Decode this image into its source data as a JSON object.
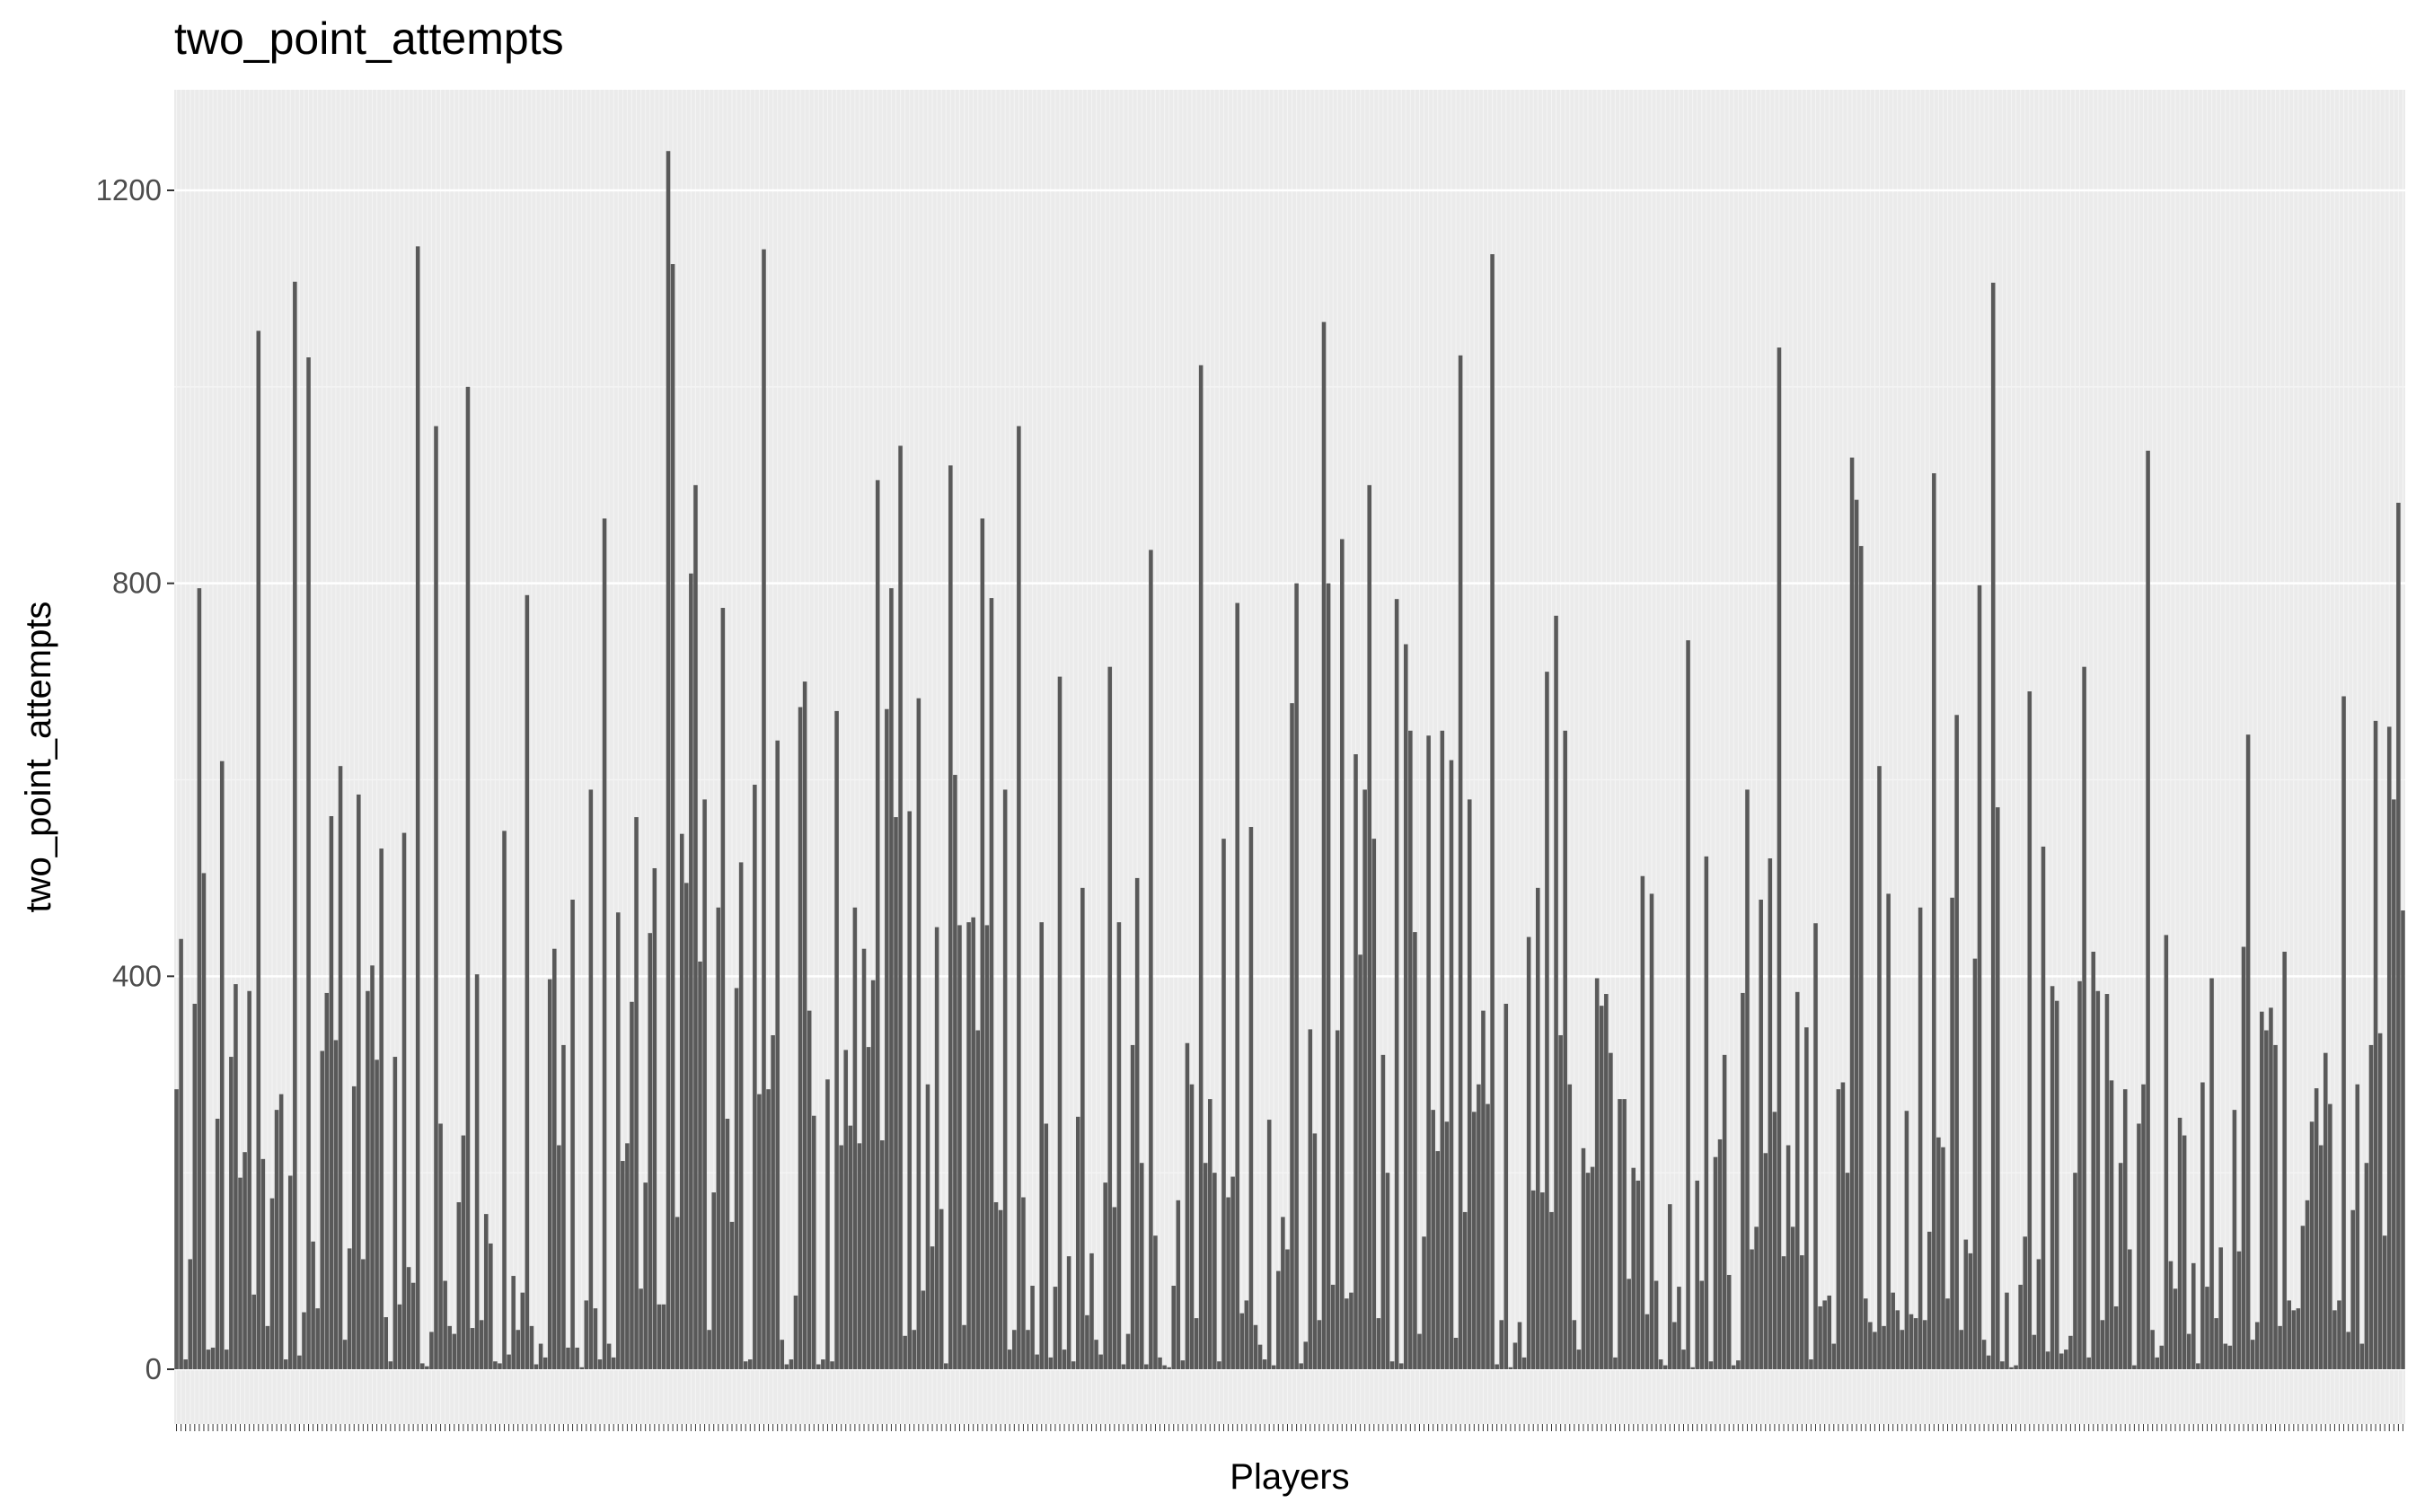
{
  "chart_data": {
    "type": "bar",
    "title": "two_point_attempts",
    "xlabel": "Players",
    "ylabel": "two_point_attempts",
    "ylim": [
      0,
      1300
    ],
    "yticks": [
      0,
      400,
      800,
      1200
    ],
    "grid": true,
    "legend": "none",
    "colors": {
      "bar": "#595959",
      "panel": "#ebebeb",
      "grid_major": "#ffffff",
      "grid_minor": "#f4f4f4",
      "tick": "#333333"
    },
    "values": [
      285,
      438,
      10,
      112,
      372,
      795,
      505,
      20,
      22,
      255,
      619,
      20,
      318,
      392,
      195,
      221,
      385,
      76,
      1057,
      214,
      44,
      174,
      264,
      280,
      10,
      197,
      1107,
      14,
      58,
      1030,
      130,
      62,
      324,
      383,
      563,
      335,
      614,
      30,
      123,
      288,
      585,
      112,
      385,
      411,
      315,
      530,
      53,
      8,
      318,
      66,
      546,
      104,
      88,
      1143,
      6,
      3,
      38,
      960,
      250,
      90,
      44,
      36,
      170,
      238,
      1000,
      42,
      402,
      50,
      158,
      128,
      8,
      6,
      548,
      15,
      95,
      40,
      78,
      788,
      44,
      5,
      26,
      12,
      397,
      428,
      228,
      330,
      22,
      478,
      22,
      2,
      70,
      590,
      62,
      10,
      866,
      26,
      12,
      465,
      212,
      230,
      374,
      562,
      82,
      190,
      444,
      510,
      66,
      66,
      1240,
      1125,
      155,
      545,
      495,
      810,
      900,
      415,
      580,
      40,
      180,
      470,
      775,
      255,
      150,
      388,
      516,
      8,
      10,
      595,
      280,
      1140,
      285,
      340,
      640,
      30,
      5,
      10,
      75,
      674,
      700,
      365,
      258,
      5,
      10,
      295,
      8,
      670,
      228,
      325,
      248,
      470,
      230,
      428,
      328,
      396,
      905,
      233,
      672,
      795,
      562,
      940,
      34,
      568,
      40,
      683,
      80,
      290,
      125,
      450,
      163,
      6,
      920,
      605,
      452,
      45,
      455,
      460,
      345,
      866,
      452,
      785,
      170,
      162,
      590,
      20,
      40,
      960,
      175,
      40,
      85,
      15,
      455,
      250,
      12,
      84,
      705,
      20,
      115,
      8,
      257,
      490,
      55,
      118,
      30,
      15,
      190,
      715,
      165,
      455,
      5,
      36,
      330,
      500,
      210,
      5,
      834,
      136,
      12,
      4,
      2,
      85,
      172,
      9,
      332,
      290,
      52,
      1022,
      210,
      275,
      200,
      8,
      540,
      175,
      196,
      780,
      57,
      70,
      552,
      45,
      25,
      10,
      254,
      4,
      100,
      155,
      122,
      678,
      800,
      6,
      28,
      346,
      240,
      50,
      1066,
      800,
      86,
      345,
      845,
      72,
      78,
      626,
      422,
      590,
      900,
      540,
      52,
      320,
      200,
      8,
      784,
      6,
      738,
      650,
      445,
      36,
      135,
      645,
      264,
      222,
      650,
      252,
      620,
      32,
      1032,
      160,
      580,
      262,
      290,
      365,
      270,
      1135,
      5,
      50,
      372,
      2,
      27,
      48,
      12,
      440,
      182,
      490,
      180,
      710,
      160,
      767,
      340,
      650,
      290,
      50,
      20,
      225,
      200,
      206,
      398,
      370,
      382,
      322,
      12,
      275,
      275,
      92,
      205,
      192,
      502,
      56,
      484,
      90,
      10,
      4,
      168,
      48,
      84,
      20,
      742,
      2,
      192,
      90,
      522,
      8,
      216,
      234,
      320,
      96,
      4,
      9,
      383,
      590,
      122,
      145,
      478,
      220,
      520,
      262,
      1040,
      115,
      228,
      145,
      384,
      116,
      348,
      10,
      454,
      64,
      70,
      75,
      26,
      285,
      292,
      200,
      928,
      885,
      838,
      72,
      48,
      38,
      614,
      44,
      484,
      78,
      60,
      40,
      263,
      56,
      52,
      470,
      50,
      140,
      912,
      236,
      226,
      72,
      480,
      666,
      40,
      132,
      118,
      418,
      798,
      30,
      14,
      1106,
      572,
      8,
      78,
      2,
      4,
      86,
      135,
      690,
      35,
      112,
      532,
      18,
      390,
      375,
      16,
      20,
      34,
      200,
      395,
      715,
      12,
      425,
      385,
      50,
      382,
      294,
      64,
      210,
      285,
      122,
      4,
      250,
      290,
      935,
      40,
      12,
      24,
      442,
      110,
      82,
      256,
      238,
      36,
      108,
      6,
      292,
      84,
      398,
      52,
      124,
      26,
      24,
      264,
      120,
      430,
      646,
      30,
      48,
      364,
      345,
      368,
      330,
      44,
      425,
      70,
      60,
      62,
      146,
      172,
      252,
      286,
      228,
      322,
      270,
      60,
      70,
      685,
      38,
      162,
      290,
      26,
      210,
      330,
      660,
      342,
      136,
      654,
      580,
      882,
      467
    ]
  }
}
